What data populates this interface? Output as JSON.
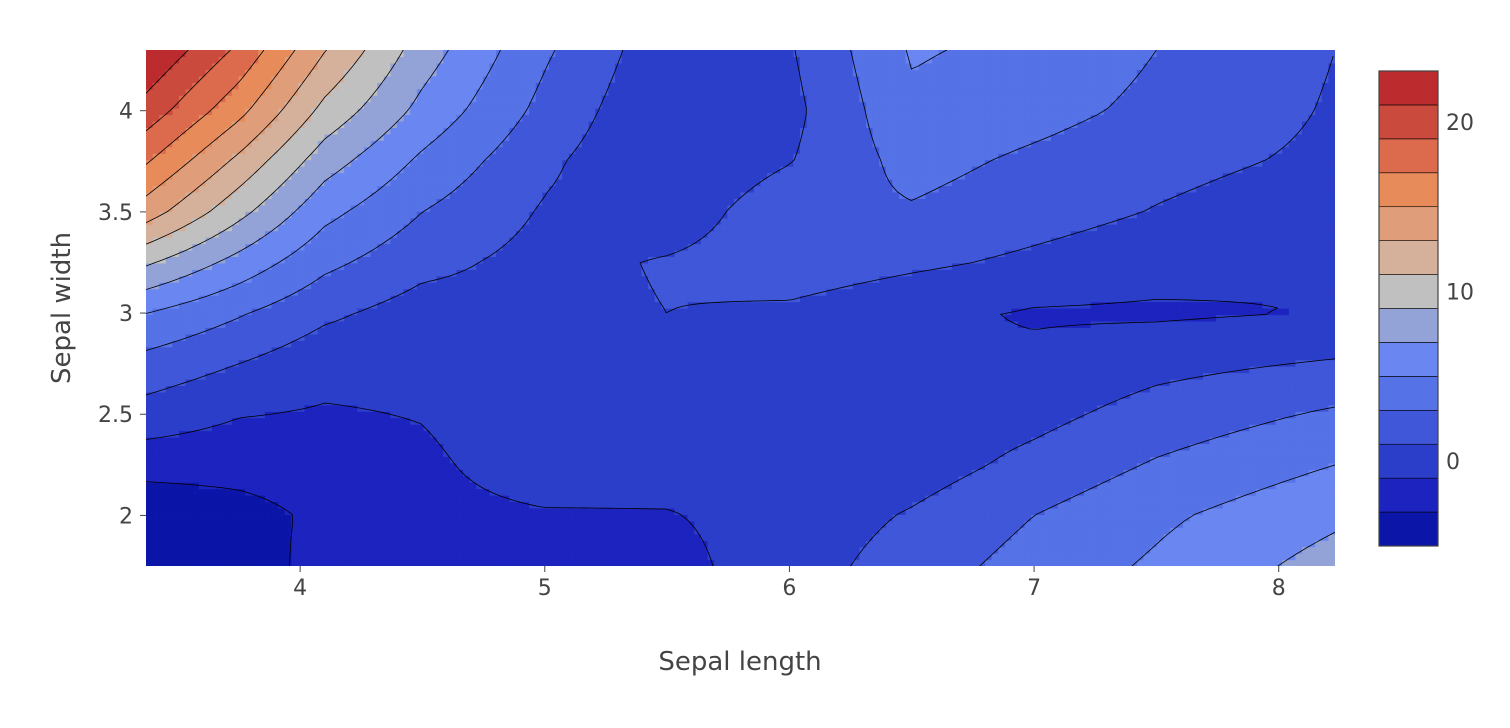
{
  "chart_data": {
    "type": "contour",
    "title": "",
    "xlabel": "Sepal length",
    "ylabel": "Sepal width",
    "xlim": [
      3.37,
      8.23
    ],
    "ylim": [
      1.75,
      4.3
    ],
    "xticks": [
      {
        "value": 4,
        "label": "4"
      },
      {
        "value": 5,
        "label": "5"
      },
      {
        "value": 6,
        "label": "6"
      },
      {
        "value": 7,
        "label": "7"
      },
      {
        "value": 8,
        "label": "8"
      }
    ],
    "yticks": [
      {
        "value": 2,
        "label": "2"
      },
      {
        "value": 2.5,
        "label": "2.5"
      },
      {
        "value": 3,
        "label": "3"
      },
      {
        "value": 3.5,
        "label": "3.5"
      },
      {
        "value": 4,
        "label": "4"
      }
    ],
    "z": {
      "x": [
        3.37,
        3.75,
        4.1,
        4.5,
        5.0,
        5.5,
        6.0,
        6.5,
        7.0,
        7.5,
        8.23
      ],
      "y": [
        1.75,
        2.0,
        2.25,
        2.5,
        2.75,
        3.0,
        3.25,
        3.5,
        3.75,
        4.0,
        4.3
      ],
      "values": [
        [
          -4.8,
          -4.0,
          -2.3,
          -1.5,
          -1.6,
          -1.6,
          0.0,
          2.0,
          3.8,
          5.3,
          7.8
        ],
        [
          -4.6,
          -3.7,
          -2.6,
          -1.6,
          -1.2,
          -1.1,
          -0.3,
          1.2,
          3.0,
          4.6,
          6.6
        ],
        [
          -2.2,
          -2.3,
          -2.1,
          -1.4,
          0.1,
          -0.3,
          -1.0,
          0.0,
          1.6,
          3.2,
          5.0
        ],
        [
          0.2,
          -0.9,
          -1.2,
          -0.9,
          0.4,
          0.3,
          -0.6,
          -0.4,
          0.4,
          1.8,
          3.3
        ],
        [
          2.3,
          1.0,
          -0.3,
          -0.4,
          0.4,
          1.0,
          -0.3,
          -1.0,
          -0.6,
          0.4,
          1.2
        ],
        [
          5.0,
          3.2,
          1.4,
          0.1,
          0.3,
          1.0,
          0.6,
          -0.5,
          -1.2,
          -1.3,
          -0.9
        ],
        [
          9.3,
          6.3,
          3.5,
          1.6,
          0.3,
          1.2,
          2.2,
          1.4,
          0.6,
          -0.2,
          -1.0
        ],
        [
          14.0,
          9.6,
          5.6,
          3.0,
          0.8,
          -0.3,
          2.4,
          2.8,
          1.8,
          0.9,
          -0.2
        ],
        [
          17.2,
          12.5,
          7.9,
          4.6,
          1.4,
          -0.9,
          0.9,
          3.7,
          2.6,
          1.6,
          0.6
        ],
        [
          20.2,
          15.6,
          10.4,
          6.4,
          2.4,
          -0.8,
          0.4,
          4.6,
          3.7,
          2.5,
          0.8
        ],
        [
          23.0,
          18.6,
          13.1,
          8.0,
          3.3,
          -0.3,
          0.8,
          5.2,
          4.5,
          3.0,
          1.0
        ]
      ]
    },
    "contour_levels": {
      "start": -5,
      "step": 2,
      "end": 23
    },
    "colorscale": [
      "#0b15a8",
      "#1c23bf",
      "#2b3ec9",
      "#3f57d8",
      "#5572e6",
      "#6a86f0",
      "#93a3d8",
      "#c0c0c0",
      "#d5b09b",
      "#e09d7a",
      "#e88b5b",
      "#dc6a4c",
      "#ca4a3d",
      "#bc2b2e",
      "#b0101f"
    ],
    "colorbar": {
      "range": [
        -5,
        23
      ],
      "ticks": [
        {
          "value": 0,
          "label": "0"
        },
        {
          "value": 10,
          "label": "10"
        },
        {
          "value": 20,
          "label": "20"
        }
      ]
    },
    "grid": false,
    "legend": "none"
  }
}
